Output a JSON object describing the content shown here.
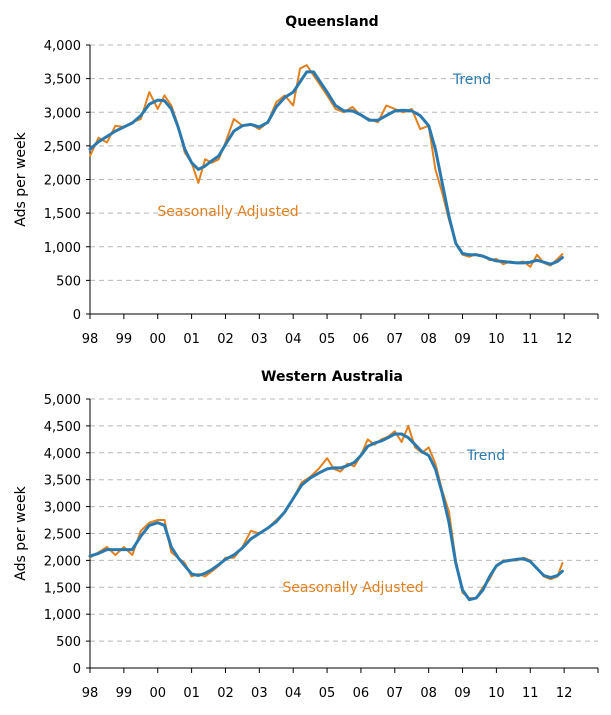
{
  "colors": {
    "seasonally_adjusted": "#E2801E",
    "trend": "#2A7AB0"
  },
  "chart_data": [
    {
      "type": "line",
      "title": "Queensland",
      "ylabel": "Ads per week",
      "xlabel": "",
      "ylim": [
        0,
        4000
      ],
      "yticks": [
        0,
        500,
        1000,
        1500,
        2000,
        2500,
        3000,
        3500,
        4000
      ],
      "ytick_labels": [
        "0",
        "500",
        "1,000",
        "1,500",
        "2,000",
        "2,500",
        "3,000",
        "3,500",
        "4,000"
      ],
      "xlim": [
        1998,
        2013
      ],
      "xticks": [
        1998,
        1999,
        2000,
        2001,
        2002,
        2003,
        2004,
        2005,
        2006,
        2007,
        2008,
        2009,
        2010,
        2011,
        2012
      ],
      "xtick_labels": [
        "98",
        "99",
        "00",
        "01",
        "02",
        "03",
        "04",
        "05",
        "06",
        "07",
        "08",
        "09",
        "10",
        "11",
        "12"
      ],
      "annotations": {
        "trend": "Trend",
        "seasonally_adjusted": "Seasonally Adjusted"
      },
      "series": [
        {
          "name": "Seasonally Adjusted",
          "x": [
            1998.0,
            1998.25,
            1998.5,
            1998.75,
            1999.0,
            1999.25,
            1999.5,
            1999.75,
            2000.0,
            2000.2,
            2000.4,
            2000.6,
            2000.8,
            2001.0,
            2001.2,
            2001.4,
            2001.6,
            2001.8,
            2002.0,
            2002.25,
            2002.5,
            2002.75,
            2003.0,
            2003.25,
            2003.5,
            2003.75,
            2004.0,
            2004.2,
            2004.4,
            2004.6,
            2004.8,
            2005.0,
            2005.25,
            2005.5,
            2005.75,
            2006.0,
            2006.25,
            2006.5,
            2006.75,
            2007.0,
            2007.25,
            2007.5,
            2007.75,
            2008.0,
            2008.2,
            2008.4,
            2008.6,
            2008.8,
            2009.0,
            2009.2,
            2009.4,
            2009.6,
            2009.8,
            2010.0,
            2010.2,
            2010.4,
            2010.6,
            2010.8,
            2011.0,
            2011.2,
            2011.4,
            2011.6,
            2011.8,
            2011.95
          ],
          "values": [
            2350,
            2620,
            2550,
            2800,
            2780,
            2850,
            2900,
            3300,
            3050,
            3250,
            3100,
            2800,
            2400,
            2250,
            1950,
            2300,
            2250,
            2300,
            2550,
            2900,
            2800,
            2820,
            2750,
            2850,
            3150,
            3250,
            3100,
            3650,
            3700,
            3550,
            3400,
            3250,
            3050,
            3000,
            3080,
            2950,
            2900,
            2850,
            3100,
            3050,
            3000,
            3050,
            2750,
            2800,
            2150,
            1800,
            1400,
            1050,
            880,
            850,
            890,
            870,
            800,
            820,
            740,
            780,
            760,
            780,
            700,
            880,
            760,
            720,
            820,
            890
          ]
        },
        {
          "name": "Trend",
          "x": [
            1998.0,
            1998.25,
            1998.5,
            1998.75,
            1999.0,
            1999.25,
            1999.5,
            1999.75,
            2000.0,
            2000.2,
            2000.4,
            2000.6,
            2000.8,
            2001.0,
            2001.2,
            2001.4,
            2001.6,
            2001.8,
            2002.0,
            2002.25,
            2002.5,
            2002.75,
            2003.0,
            2003.25,
            2003.5,
            2003.75,
            2004.0,
            2004.2,
            2004.4,
            2004.6,
            2004.8,
            2005.0,
            2005.25,
            2005.5,
            2005.75,
            2006.0,
            2006.25,
            2006.5,
            2006.75,
            2007.0,
            2007.25,
            2007.5,
            2007.75,
            2008.0,
            2008.2,
            2008.4,
            2008.6,
            2008.8,
            2009.0,
            2009.2,
            2009.4,
            2009.6,
            2009.8,
            2010.0,
            2010.2,
            2010.4,
            2010.6,
            2010.8,
            2011.0,
            2011.2,
            2011.4,
            2011.6,
            2011.8,
            2011.95
          ],
          "values": [
            2450,
            2560,
            2640,
            2720,
            2780,
            2840,
            2950,
            3120,
            3180,
            3170,
            3050,
            2780,
            2450,
            2250,
            2150,
            2200,
            2280,
            2350,
            2520,
            2720,
            2800,
            2820,
            2780,
            2850,
            3080,
            3220,
            3300,
            3450,
            3600,
            3600,
            3450,
            3300,
            3100,
            3020,
            3020,
            2960,
            2880,
            2880,
            2950,
            3020,
            3030,
            3020,
            2950,
            2800,
            2450,
            1950,
            1450,
            1050,
            900,
            880,
            880,
            860,
            820,
            790,
            780,
            770,
            760,
            760,
            770,
            800,
            770,
            740,
            780,
            840
          ]
        }
      ]
    },
    {
      "type": "line",
      "title": "Western Australia",
      "ylabel": "Ads per week",
      "xlabel": "",
      "ylim": [
        0,
        5000
      ],
      "yticks": [
        0,
        500,
        1000,
        1500,
        2000,
        2500,
        3000,
        3500,
        4000,
        4500,
        5000
      ],
      "ytick_labels": [
        "0",
        "500",
        "1,000",
        "1,500",
        "2,000",
        "2,500",
        "3,000",
        "3,500",
        "4,000",
        "4,500",
        "5,000"
      ],
      "xlim": [
        1998,
        2013
      ],
      "xticks": [
        1998,
        1999,
        2000,
        2001,
        2002,
        2003,
        2004,
        2005,
        2006,
        2007,
        2008,
        2009,
        2010,
        2011,
        2012
      ],
      "xtick_labels": [
        "98",
        "99",
        "00",
        "01",
        "02",
        "03",
        "04",
        "05",
        "06",
        "07",
        "08",
        "09",
        "10",
        "11",
        "12"
      ],
      "annotations": {
        "trend": "Trend",
        "seasonally_adjusted": "Seasonally Adjusted"
      },
      "series": [
        {
          "name": "Seasonally Adjusted",
          "x": [
            1998.0,
            1998.25,
            1998.5,
            1998.75,
            1999.0,
            1999.25,
            1999.5,
            1999.75,
            2000.0,
            2000.2,
            2000.4,
            2000.6,
            2000.8,
            2001.0,
            2001.2,
            2001.4,
            2001.6,
            2001.8,
            2002.0,
            2002.25,
            2002.5,
            2002.75,
            2003.0,
            2003.25,
            2003.5,
            2003.75,
            2004.0,
            2004.25,
            2004.5,
            2004.75,
            2005.0,
            2005.2,
            2005.4,
            2005.6,
            2005.8,
            2006.0,
            2006.2,
            2006.4,
            2006.6,
            2006.8,
            2007.0,
            2007.2,
            2007.4,
            2007.6,
            2007.8,
            2008.0,
            2008.2,
            2008.4,
            2008.6,
            2008.8,
            2009.0,
            2009.2,
            2009.4,
            2009.6,
            2009.8,
            2010.0,
            2010.2,
            2010.4,
            2010.6,
            2010.8,
            2011.0,
            2011.2,
            2011.4,
            2011.6,
            2011.8,
            2011.95
          ],
          "values": [
            2050,
            2150,
            2250,
            2100,
            2250,
            2100,
            2550,
            2700,
            2750,
            2750,
            2150,
            2050,
            1950,
            1700,
            1750,
            1700,
            1800,
            1900,
            2050,
            2050,
            2250,
            2550,
            2500,
            2600,
            2750,
            2900,
            3150,
            3450,
            3550,
            3700,
            3900,
            3700,
            3650,
            3800,
            3750,
            3950,
            4250,
            4150,
            4250,
            4300,
            4400,
            4200,
            4500,
            4100,
            4000,
            4100,
            3800,
            3300,
            2900,
            2000,
            1400,
            1300,
            1300,
            1500,
            1650,
            1900,
            2000,
            2000,
            2000,
            2050,
            2000,
            1850,
            1700,
            1650,
            1700,
            1950
          ]
        },
        {
          "name": "Trend",
          "x": [
            1998.0,
            1998.25,
            1998.5,
            1998.75,
            1999.0,
            1999.25,
            1999.5,
            1999.75,
            2000.0,
            2000.2,
            2000.4,
            2000.6,
            2000.8,
            2001.0,
            2001.2,
            2001.4,
            2001.6,
            2001.8,
            2002.0,
            2002.25,
            2002.5,
            2002.75,
            2003.0,
            2003.25,
            2003.5,
            2003.75,
            2004.0,
            2004.25,
            2004.5,
            2004.75,
            2005.0,
            2005.2,
            2005.4,
            2005.6,
            2005.8,
            2006.0,
            2006.2,
            2006.4,
            2006.6,
            2006.8,
            2007.0,
            2007.2,
            2007.4,
            2007.6,
            2007.8,
            2008.0,
            2008.2,
            2008.4,
            2008.6,
            2008.8,
            2009.0,
            2009.2,
            2009.4,
            2009.6,
            2009.8,
            2010.0,
            2010.2,
            2010.4,
            2010.6,
            2010.8,
            2011.0,
            2011.2,
            2011.4,
            2011.6,
            2011.8,
            2011.95
          ],
          "values": [
            2080,
            2130,
            2200,
            2200,
            2200,
            2200,
            2450,
            2650,
            2700,
            2650,
            2250,
            2050,
            1900,
            1750,
            1720,
            1760,
            1830,
            1920,
            2020,
            2100,
            2230,
            2400,
            2500,
            2600,
            2720,
            2900,
            3150,
            3400,
            3530,
            3620,
            3700,
            3720,
            3720,
            3760,
            3820,
            3950,
            4120,
            4180,
            4220,
            4280,
            4350,
            4350,
            4280,
            4150,
            4020,
            3950,
            3700,
            3250,
            2700,
            1950,
            1450,
            1270,
            1300,
            1450,
            1700,
            1900,
            1980,
            2000,
            2020,
            2030,
            1980,
            1850,
            1720,
            1680,
            1720,
            1800
          ]
        }
      ]
    }
  ]
}
